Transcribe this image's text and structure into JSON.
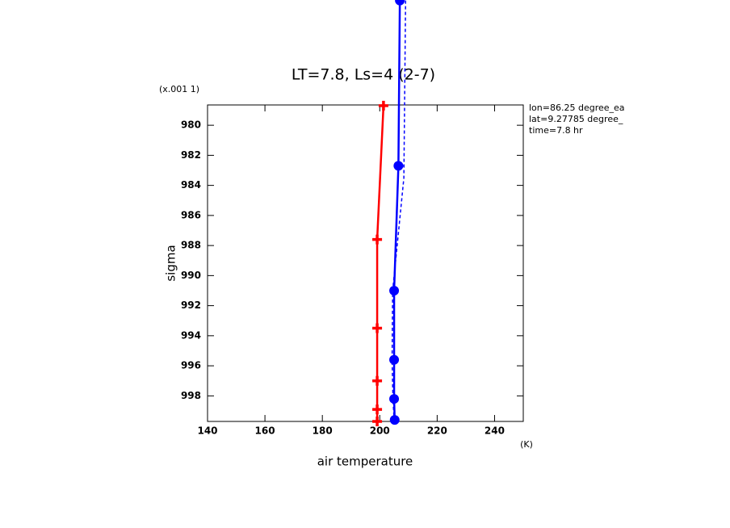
{
  "chart_data": {
    "type": "line",
    "title": "LT=7.8, Ls=4 (2-7)",
    "y_scale_label": "(x.001 1)",
    "xlabel": "air temperature",
    "ylabel": "sigma",
    "x_unit": "(K)",
    "info": [
      "lon=86.25 degree_ea",
      "lat=9.27785 degree_",
      "time=7.8 hr"
    ],
    "xlim": [
      140,
      250
    ],
    "xticks": [
      140,
      160,
      180,
      200,
      220,
      240
    ],
    "ylim": [
      978.65,
      999.7
    ],
    "yticks": [
      980,
      982,
      984,
      986,
      988,
      990,
      992,
      994,
      996,
      998
    ],
    "y_reversed": true,
    "series": [
      {
        "color": "#ff0000",
        "marker": "plus",
        "dash": false,
        "x": [
          201.3,
          199.1,
          199.1,
          199.1,
          199.1,
          199.1
        ],
        "y": [
          978.7,
          987.6,
          993.5,
          997.0,
          998.9,
          999.7
        ]
      },
      {
        "color": "#0000ff",
        "marker": "circle",
        "dash": false,
        "x": [
          207.0,
          206.5,
          205.0,
          205.0,
          205.0,
          205.2
        ],
        "y": [
          971.7,
          982.7,
          991.0,
          995.6,
          998.2,
          999.6
        ]
      },
      {
        "color": "#0000ff",
        "marker": "none",
        "dash": true,
        "x": [
          209.0,
          208.4,
          204.5,
          204.3,
          204.6,
          205.0
        ],
        "y": [
          971.7,
          983.5,
          991.0,
          995.6,
          998.2,
          999.6
        ]
      }
    ]
  }
}
